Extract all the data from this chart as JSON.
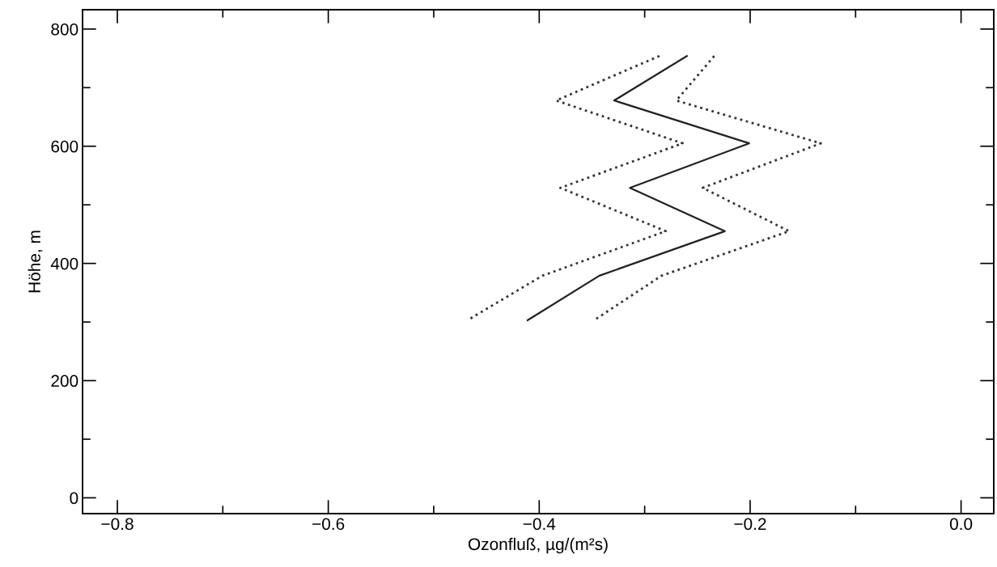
{
  "chart_data": {
    "type": "line",
    "xlabel": "Ozonfluß, µg/(m²s)",
    "ylabel": "Höhe, m",
    "xlim": [
      -0.833,
      0.031
    ],
    "ylim": [
      -27,
      833
    ],
    "xticks": [
      {
        "value": -0.8,
        "label": "−0.8"
      },
      {
        "value": -0.7,
        "label": null
      },
      {
        "value": -0.6,
        "label": "−0.6"
      },
      {
        "value": -0.5,
        "label": null
      },
      {
        "value": -0.4,
        "label": "−0.4"
      },
      {
        "value": -0.3,
        "label": null
      },
      {
        "value": -0.2,
        "label": "−0.2"
      },
      {
        "value": -0.1,
        "label": null
      },
      {
        "value": 0.0,
        "label": "0.0"
      }
    ],
    "yticks": [
      0,
      {
        "value": 100,
        "label": null
      },
      200,
      {
        "value": 300,
        "label": null
      },
      400,
      {
        "value": 500,
        "label": null
      },
      600,
      {
        "value": 700,
        "label": null
      },
      800
    ],
    "marker": "none",
    "series": [
      {
        "color": "#333333",
        "line_style": "dotted",
        "x": [
          -0.286,
          -0.384,
          -0.264,
          -0.38,
          -0.28,
          -0.397,
          -0.468
        ],
        "values": [
          754,
          678,
          605,
          529,
          455,
          379,
          303
        ]
      },
      {
        "color": "#222222",
        "line_style": "solid",
        "x": [
          -0.26,
          -0.329,
          -0.201,
          -0.314,
          -0.224,
          -0.343,
          -0.411
        ],
        "values": [
          754,
          678,
          605,
          529,
          455,
          379,
          303
        ]
      },
      {
        "color": "#333333",
        "line_style": "dotted",
        "x": [
          -0.234,
          -0.27,
          -0.133,
          -0.245,
          -0.163,
          -0.284,
          -0.348
        ],
        "values": [
          754,
          678,
          605,
          529,
          455,
          379,
          303
        ]
      }
    ]
  }
}
